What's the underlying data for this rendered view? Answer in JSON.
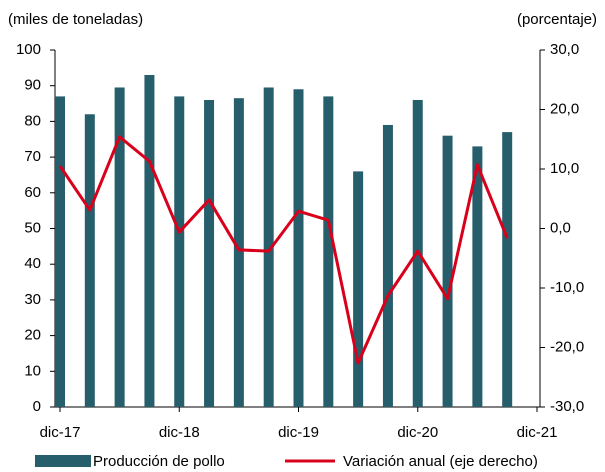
{
  "chart_data": {
    "type": "bar-line",
    "y_label": "(miles de toneladas)",
    "y2_label": "(porcentaje)",
    "categories": [
      "dic-17",
      null,
      null,
      null,
      "dic-18",
      null,
      null,
      null,
      "dic-19",
      null,
      null,
      null,
      "dic-20",
      null,
      null,
      null,
      "dic-21"
    ],
    "series": [
      {
        "name": "Producción de pollo",
        "type": "bar",
        "color": "#275e6c",
        "values": [
          87,
          82,
          89.5,
          93,
          87,
          86,
          86.5,
          89.5,
          89,
          87,
          66,
          79,
          86,
          76,
          73,
          77,
          null
        ]
      },
      {
        "name": "Variación anual (eje derecho)",
        "type": "line",
        "axis": "y2",
        "color": "#d9001b",
        "values": [
          10.5,
          3.1,
          15.4,
          11.3,
          -0.6,
          4.8,
          -3.6,
          -3.8,
          2.9,
          1.4,
          -22.6,
          -11.3,
          -3.8,
          -11.8,
          10.7,
          -1.6,
          null
        ]
      }
    ],
    "ylim": [
      0,
      100
    ],
    "yticks": [
      0,
      10,
      20,
      30,
      40,
      50,
      60,
      70,
      80,
      90,
      100
    ],
    "y2lim": [
      -30,
      30
    ],
    "y2ticks": [
      {
        "value": -30,
        "label": "-30,0"
      },
      {
        "value": -20,
        "label": "-20,0"
      },
      {
        "value": -10,
        "label": "-10,0"
      },
      {
        "value": 0,
        "label": "0,0"
      },
      {
        "value": 10,
        "label": "10,0"
      },
      {
        "value": 20,
        "label": "20,0"
      },
      {
        "value": 30,
        "label": "30,0"
      }
    ],
    "grid": false,
    "legend": "bottom"
  }
}
